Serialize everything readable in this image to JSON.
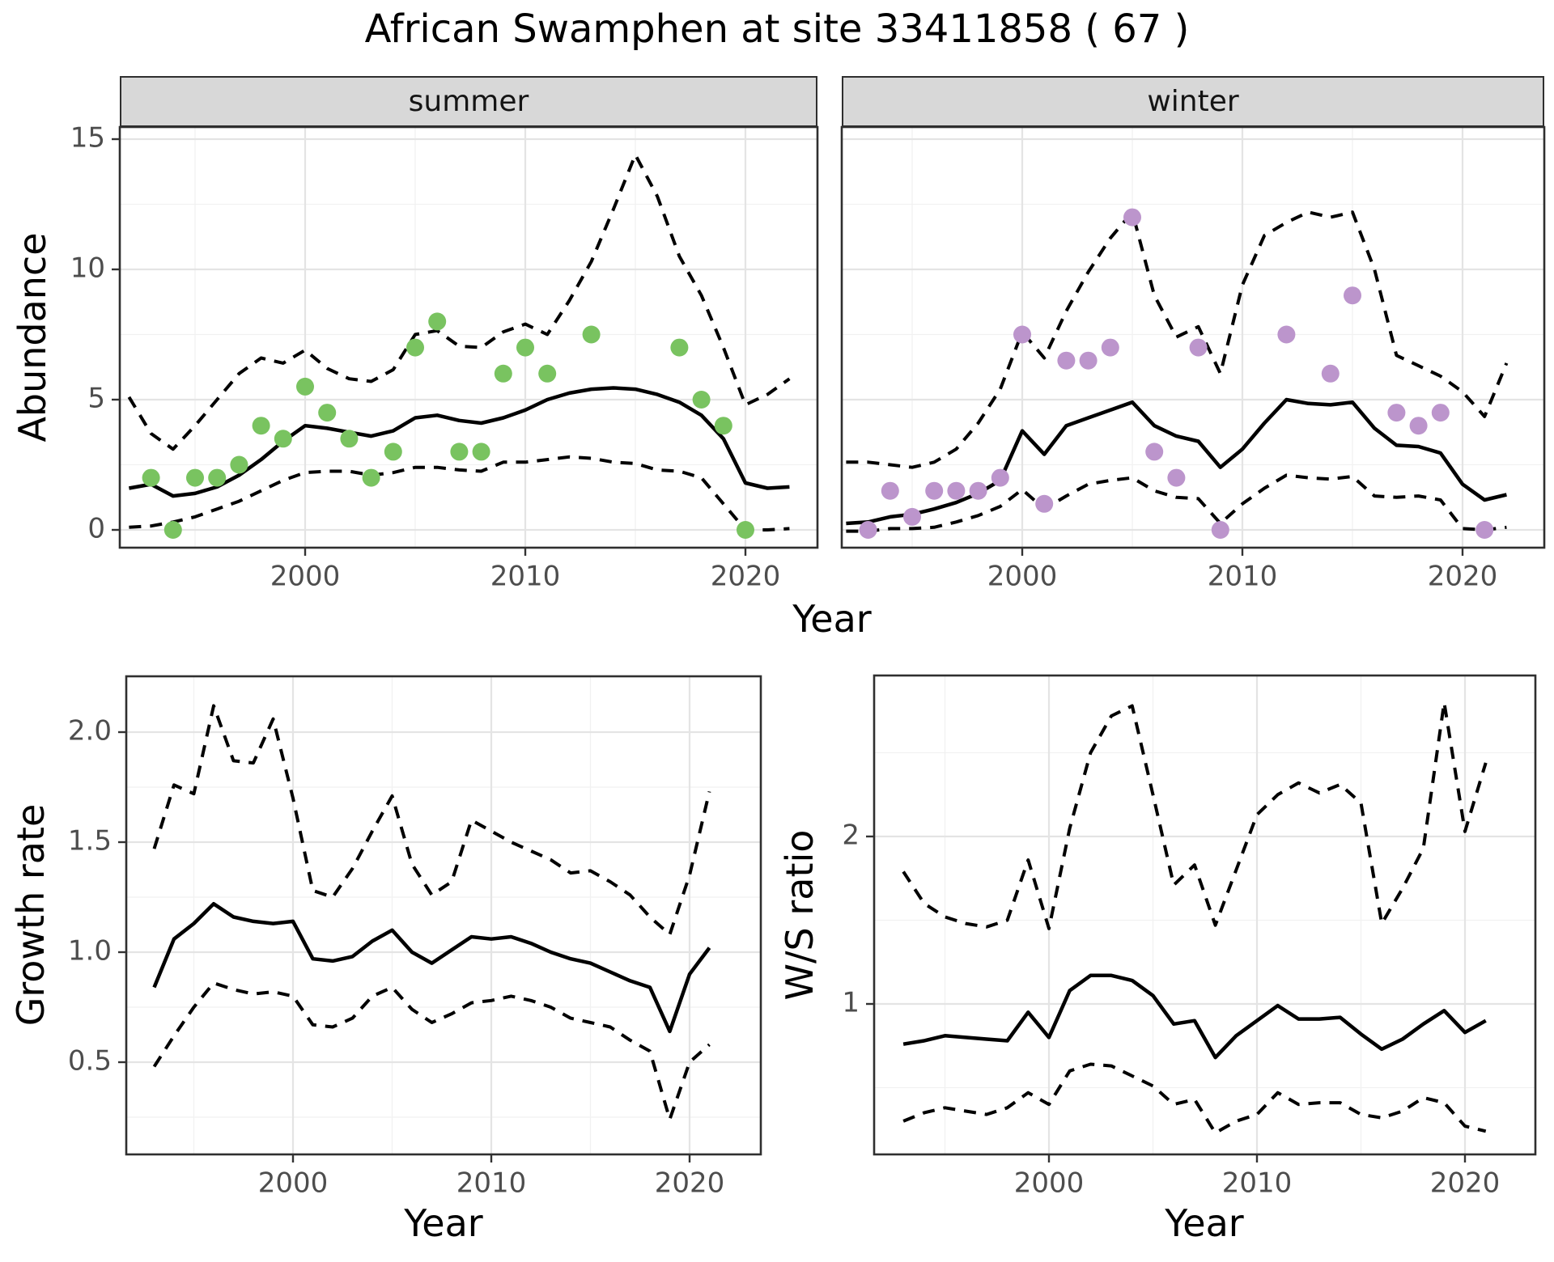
{
  "title": "African Swamphen at site 33411858 ( 67 )",
  "colors": {
    "summer_points": "#79C360",
    "winter_points": "#BC95CC",
    "line": "#000000",
    "strip_bg": "#D8D8D8",
    "tick_text": "#4D4D4D",
    "grid_major": "#E4E4E4",
    "grid_minor": "#F1F1F1",
    "panel_border": "#2F2F2F"
  },
  "chart_data": {
    "type": "line",
    "title": "African Swamphen at site 33411858 ( 67 )",
    "xlabel": "Year",
    "facets": [
      "summer",
      "winter"
    ],
    "legend": "none",
    "panels": [
      {
        "id": "summer",
        "facet_label": "summer",
        "ylabel": "Abundance",
        "xticks": {
          "values": [
            2000,
            2010,
            2020
          ],
          "labels": [
            "2000",
            "2010",
            "2020"
          ],
          "minor": [
            1995,
            2005,
            2015
          ]
        },
        "yticks": {
          "values": [
            0,
            5,
            10,
            15
          ],
          "labels": [
            "0",
            "5",
            "10",
            "15"
          ],
          "minor": [
            2.5,
            7.5,
            12.5
          ],
          "show_labels": true
        },
        "series": {
          "observed": {
            "style": "points",
            "years": [
              1993,
              1994,
              1995,
              1996,
              1997,
              1998,
              1999,
              2000,
              2001,
              2002,
              2003,
              2004,
              2005,
              2006,
              2007,
              2008,
              2009,
              2010,
              2011,
              2013,
              2017,
              2018,
              2019,
              2020
            ],
            "values": [
              2,
              0,
              2,
              2,
              2.5,
              4,
              3.5,
              5.5,
              4.5,
              3.5,
              2,
              3,
              7,
              8,
              3,
              3,
              6,
              7,
              6,
              7.5,
              7,
              5,
              4,
              0
            ]
          },
          "mean": {
            "style": "solid",
            "start": 1992,
            "values": [
              1.6,
              1.75,
              1.3,
              1.4,
              1.65,
              2.1,
              2.7,
              3.4,
              4.0,
              3.9,
              3.75,
              3.6,
              3.8,
              4.3,
              4.4,
              4.2,
              4.1,
              4.3,
              4.6,
              5.0,
              5.25,
              5.4,
              5.45,
              5.4,
              5.2,
              4.9,
              4.4,
              3.5,
              1.8,
              1.6,
              1.65
            ]
          },
          "upper_ci": {
            "style": "dashed",
            "start": 1992,
            "values": [
              5.1,
              3.7,
              3.1,
              4.0,
              5.0,
              6.0,
              6.6,
              6.4,
              6.9,
              6.2,
              5.8,
              5.7,
              6.15,
              7.5,
              7.65,
              7.05,
              7.0,
              7.6,
              7.9,
              7.5,
              8.8,
              10.3,
              12.3,
              14.4,
              12.8,
              10.5,
              9.0,
              7.0,
              4.8,
              5.2,
              5.8
            ]
          },
          "lower_ci": {
            "style": "dashed",
            "start": 1992,
            "values": [
              0.1,
              0.15,
              0.3,
              0.5,
              0.8,
              1.1,
              1.5,
              1.9,
              2.2,
              2.25,
              2.25,
              2.1,
              2.2,
              2.4,
              2.4,
              2.3,
              2.25,
              2.6,
              2.6,
              2.7,
              2.8,
              2.75,
              2.6,
              2.55,
              2.3,
              2.25,
              2.0,
              1.0,
              0.0,
              0.0,
              0.05
            ]
          }
        }
      },
      {
        "id": "winter",
        "facet_label": "winter",
        "ylabel": "Abundance",
        "xticks": {
          "values": [
            2000,
            2010,
            2020
          ],
          "labels": [
            "2000",
            "2010",
            "2020"
          ],
          "minor": [
            1995,
            2005,
            2015
          ]
        },
        "yticks": {
          "values": [
            0,
            5,
            10,
            15
          ],
          "labels": [
            "0",
            "5",
            "10",
            "15"
          ],
          "minor": [
            2.5,
            7.5,
            12.5
          ],
          "show_labels": false
        },
        "series": {
          "observed": {
            "style": "points",
            "years": [
              1993,
              1994,
              1995,
              1996,
              1997,
              1998,
              1999,
              2000,
              2001,
              2002,
              2003,
              2004,
              2005,
              2006,
              2007,
              2008,
              2009,
              2012,
              2014,
              2015,
              2017,
              2018,
              2019,
              2021
            ],
            "values": [
              0,
              1.5,
              0.5,
              1.5,
              1.5,
              1.5,
              2,
              7.5,
              1,
              6.5,
              6.5,
              7,
              12,
              3,
              2,
              7,
              0,
              7.5,
              6,
              9,
              4.5,
              4,
              4.5,
              0
            ]
          },
          "mean": {
            "style": "solid",
            "start": 1992,
            "values": [
              0.25,
              0.3,
              0.5,
              0.6,
              0.8,
              1.05,
              1.4,
              1.9,
              3.8,
              2.9,
              4.0,
              4.3,
              4.6,
              4.9,
              4.0,
              3.6,
              3.4,
              2.4,
              3.1,
              4.1,
              5.0,
              4.85,
              4.8,
              4.9,
              3.9,
              3.25,
              3.2,
              2.95,
              1.75,
              1.15,
              1.35
            ]
          },
          "upper_ci": {
            "style": "dashed",
            "start": 1992,
            "values": [
              2.6,
              2.6,
              2.5,
              2.4,
              2.6,
              3.1,
              4.1,
              5.4,
              7.6,
              6.6,
              8.4,
              9.9,
              11.2,
              12.2,
              9.0,
              7.4,
              7.8,
              6.0,
              9.4,
              11.3,
              11.8,
              12.2,
              12.0,
              12.2,
              10.0,
              6.7,
              6.3,
              5.9,
              5.3,
              4.35,
              6.4
            ]
          },
          "lower_ci": {
            "style": "dashed",
            "start": 1992,
            "values": [
              -0.05,
              -0.05,
              0.05,
              0.05,
              0.1,
              0.3,
              0.55,
              0.9,
              1.55,
              0.8,
              1.3,
              1.75,
              1.9,
              2.0,
              1.5,
              1.25,
              1.2,
              0.25,
              1.0,
              1.6,
              2.1,
              2.0,
              1.95,
              2.05,
              1.3,
              1.25,
              1.3,
              1.15,
              0.05,
              0.0,
              0.1
            ]
          }
        }
      },
      {
        "id": "growth",
        "facet_label": "",
        "ylabel": "Growth rate",
        "xlabel": "Year",
        "xticks": {
          "values": [
            2000,
            2010,
            2020
          ],
          "labels": [
            "2000",
            "2010",
            "2020"
          ],
          "minor": [
            1995,
            2005,
            2015
          ]
        },
        "yticks": {
          "values": [
            0.5,
            1.0,
            1.5,
            2.0
          ],
          "labels": [
            "0.5",
            "1.0",
            "1.5",
            "2.0"
          ],
          "minor": [
            0.25,
            0.75,
            1.25,
            1.75
          ],
          "show_labels": true
        },
        "series": {
          "mean": {
            "style": "solid",
            "start": 1993,
            "values": [
              0.84,
              1.06,
              1.13,
              1.22,
              1.16,
              1.14,
              1.13,
              1.14,
              0.97,
              0.96,
              0.98,
              1.05,
              1.1,
              1.0,
              0.95,
              1.01,
              1.07,
              1.06,
              1.07,
              1.04,
              1.0,
              0.97,
              0.95,
              0.91,
              0.87,
              0.84,
              0.64,
              0.9,
              1.02
            ]
          },
          "upper_ci": {
            "style": "dashed",
            "start": 1993,
            "values": [
              1.47,
              1.76,
              1.72,
              2.12,
              1.87,
              1.86,
              2.06,
              1.7,
              1.28,
              1.25,
              1.38,
              1.55,
              1.71,
              1.4,
              1.26,
              1.32,
              1.6,
              1.55,
              1.5,
              1.46,
              1.42,
              1.36,
              1.37,
              1.32,
              1.26,
              1.16,
              1.08,
              1.35,
              1.73
            ]
          },
          "lower_ci": {
            "style": "dashed",
            "start": 1993,
            "values": [
              0.48,
              0.62,
              0.75,
              0.86,
              0.83,
              0.81,
              0.82,
              0.8,
              0.67,
              0.66,
              0.7,
              0.8,
              0.84,
              0.74,
              0.68,
              0.72,
              0.77,
              0.78,
              0.8,
              0.78,
              0.75,
              0.7,
              0.68,
              0.66,
              0.6,
              0.55,
              0.24,
              0.5,
              0.58
            ]
          }
        }
      },
      {
        "id": "ws",
        "facet_label": "",
        "ylabel": "W/S ratio",
        "xlabel": "Year",
        "xticks": {
          "values": [
            2000,
            2010,
            2020
          ],
          "labels": [
            "2000",
            "2010",
            "2020"
          ],
          "minor": [
            1995,
            2005,
            2015
          ]
        },
        "yticks": {
          "values": [
            1,
            2
          ],
          "labels": [
            "1",
            "2"
          ],
          "minor": [
            0.5,
            1.5,
            2.5
          ],
          "show_labels": true
        },
        "series": {
          "mean": {
            "style": "solid",
            "start": 1993,
            "values": [
              0.76,
              0.78,
              0.81,
              0.8,
              0.79,
              0.78,
              0.95,
              0.8,
              1.08,
              1.17,
              1.17,
              1.14,
              1.05,
              0.88,
              0.9,
              0.68,
              0.81,
              0.9,
              0.99,
              0.91,
              0.91,
              0.92,
              0.82,
              0.73,
              0.79,
              0.88,
              0.96,
              0.83,
              0.9
            ]
          },
          "upper_ci": {
            "style": "dashed",
            "start": 1993,
            "values": [
              1.79,
              1.6,
              1.52,
              1.48,
              1.46,
              1.5,
              1.86,
              1.45,
              2.05,
              2.5,
              2.72,
              2.78,
              2.25,
              1.71,
              1.83,
              1.47,
              1.8,
              2.13,
              2.25,
              2.32,
              2.26,
              2.31,
              2.2,
              1.48,
              1.69,
              1.93,
              2.8,
              2.03,
              2.44
            ]
          },
          "lower_ci": {
            "style": "dashed",
            "start": 1993,
            "values": [
              0.3,
              0.35,
              0.38,
              0.36,
              0.34,
              0.38,
              0.47,
              0.4,
              0.6,
              0.64,
              0.63,
              0.57,
              0.51,
              0.4,
              0.43,
              0.23,
              0.3,
              0.34,
              0.47,
              0.4,
              0.41,
              0.41,
              0.34,
              0.32,
              0.36,
              0.44,
              0.41,
              0.27,
              0.24
            ]
          }
        }
      }
    ]
  }
}
